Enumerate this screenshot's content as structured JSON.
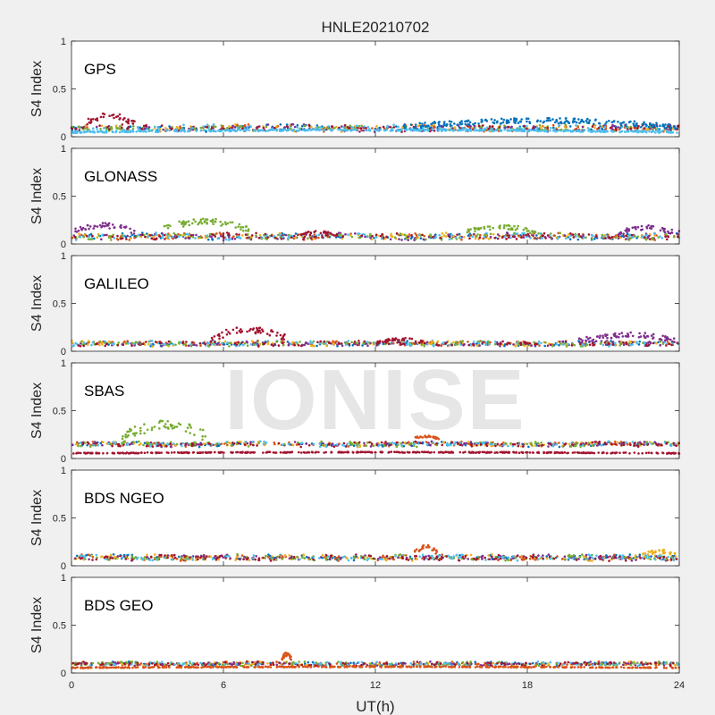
{
  "chart_data": {
    "type": "scatter",
    "title": "HNLE20210702",
    "xlabel": "UT(h)",
    "ylabel": "S4 Index",
    "xlim": [
      0,
      24
    ],
    "ylim": [
      0,
      1
    ],
    "xticks": [
      0,
      6,
      12,
      18,
      24
    ],
    "yticks": [
      0,
      0.5,
      1
    ],
    "watermark": "IONISE",
    "series_colors": [
      "#0072bd",
      "#d95319",
      "#edb120",
      "#7e2f8e",
      "#77ac30",
      "#4dbeee",
      "#a2142f"
    ],
    "panels": [
      {
        "label": "GPS",
        "baseline_range": [
          0.05,
          0.13
        ],
        "features": [
          {
            "x": [
              0.5,
              2.5
            ],
            "y": [
              0.1,
              0.25
            ],
            "color": "#a2142f"
          },
          {
            "x": [
              13,
              24
            ],
            "y": [
              0.07,
              0.2
            ],
            "color": "#0072bd"
          },
          {
            "x": [
              0,
              24
            ],
            "y": [
              0.04,
              0.08
            ],
            "color": "#4dbeee"
          }
        ]
      },
      {
        "label": "GLONASS",
        "baseline_range": [
          0.04,
          0.12
        ],
        "features": [
          {
            "x": [
              0,
              2.5
            ],
            "y": [
              0.1,
              0.22
            ],
            "color": "#7e2f8e"
          },
          {
            "x": [
              3.5,
              7
            ],
            "y": [
              0.12,
              0.27
            ],
            "color": "#77ac30"
          },
          {
            "x": [
              9,
              10.5
            ],
            "y": [
              0.08,
              0.14
            ],
            "color": "#a2142f"
          },
          {
            "x": [
              15.5,
              18.5
            ],
            "y": [
              0.1,
              0.2
            ],
            "color": "#77ac30"
          },
          {
            "x": [
              21.5,
              24
            ],
            "y": [
              0.08,
              0.2
            ],
            "color": "#7e2f8e"
          }
        ]
      },
      {
        "label": "GALILEO",
        "baseline_range": [
          0.05,
          0.11
        ],
        "features": [
          {
            "x": [
              5.5,
              8.5
            ],
            "y": [
              0.1,
              0.26
            ],
            "color": "#a2142f"
          },
          {
            "x": [
              12,
              14
            ],
            "y": [
              0.08,
              0.14
            ],
            "color": "#a2142f"
          },
          {
            "x": [
              20,
              24
            ],
            "y": [
              0.08,
              0.2
            ],
            "color": "#7e2f8e"
          }
        ]
      },
      {
        "label": "SBAS",
        "baseline_range": [
          0.12,
          0.18
        ],
        "features": [
          {
            "x": [
              0,
              24
            ],
            "y": [
              0.05,
              0.07
            ],
            "color": "#a2142f"
          },
          {
            "x": [
              2,
              5.5
            ],
            "y": [
              0.15,
              0.42
            ],
            "color": "#77ac30"
          },
          {
            "x": [
              13.5,
              14.5
            ],
            "y": [
              0.2,
              0.24
            ],
            "color": "#d95319"
          }
        ]
      },
      {
        "label": "BDS NGEO",
        "baseline_range": [
          0.05,
          0.12
        ],
        "features": [
          {
            "x": [
              13.5,
              14.5
            ],
            "y": [
              0.1,
              0.22
            ],
            "color": "#d95319"
          },
          {
            "x": [
              22.5,
              24
            ],
            "y": [
              0.08,
              0.17
            ],
            "color": "#edb120"
          }
        ]
      },
      {
        "label": "BDS GEO",
        "baseline_range": [
          0.07,
          0.12
        ],
        "features": [
          {
            "x": [
              8.3,
              8.7
            ],
            "y": [
              0.12,
              0.22
            ],
            "color": "#d95319"
          },
          {
            "x": [
              0,
              24
            ],
            "y": [
              0.05,
              0.07
            ],
            "color": "#d95319"
          }
        ]
      }
    ]
  }
}
